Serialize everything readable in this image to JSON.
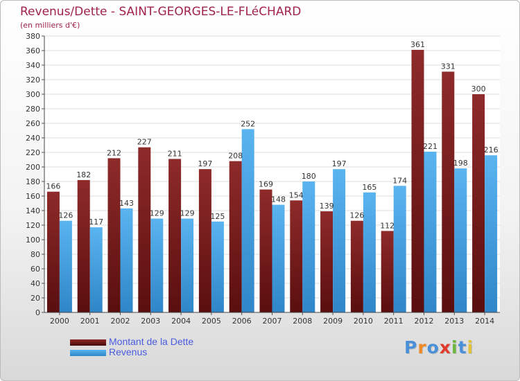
{
  "title": "Revenus/Dette - SAINT-GEORGES-LE-FLéCHARD",
  "subtitle": "(en milliers d'€)",
  "logo": {
    "text": "Proxiti",
    "colors": [
      "#4a90d9",
      "#f08a24",
      "#4a90d9",
      "#e23a2a",
      "#6bb63c",
      "#4a90d9",
      "#e2c23a"
    ]
  },
  "colors": {
    "dette": "#7a1f1f",
    "revenus": "#4ca7e8",
    "title": "#a0224e",
    "legend_text": "#4a5be0"
  },
  "chart_data": {
    "type": "bar",
    "categories": [
      "2000",
      "2001",
      "2002",
      "2003",
      "2004",
      "2005",
      "2006",
      "2007",
      "2008",
      "2009",
      "2010",
      "2011",
      "2012",
      "2013",
      "2014"
    ],
    "series": [
      {
        "name": "Montant de la Dette",
        "values": [
          166,
          182,
          212,
          227,
          211,
          197,
          208,
          169,
          154,
          139,
          126,
          112,
          361,
          331,
          300
        ]
      },
      {
        "name": "Revenus",
        "values": [
          126,
          117,
          143,
          129,
          129,
          125,
          252,
          148,
          180,
          197,
          165,
          174,
          221,
          198,
          216
        ]
      }
    ],
    "ylim": [
      0,
      380
    ],
    "ytick_step": 20,
    "yticks": [
      "0",
      "20",
      "40",
      "60",
      "80",
      "100",
      "120",
      "140",
      "160",
      "180",
      "200",
      "220",
      "240",
      "260",
      "280",
      "300",
      "320",
      "340",
      "360",
      "380"
    ],
    "grid": true,
    "legend": "bottom-left"
  }
}
